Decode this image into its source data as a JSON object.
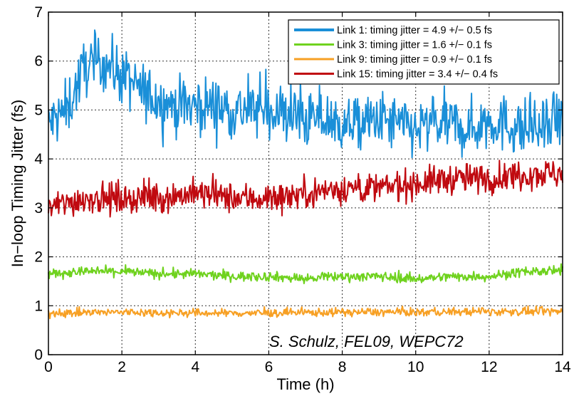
{
  "chart_data": {
    "type": "line",
    "title": "",
    "xlabel": "Time (h)",
    "ylabel": "In−loop Timing Jitter (fs)",
    "xlim": [
      0,
      14
    ],
    "ylim": [
      0,
      7
    ],
    "xticks": [
      0,
      2,
      4,
      6,
      8,
      10,
      12,
      14
    ],
    "yticks": [
      0,
      1,
      2,
      3,
      4,
      5,
      6,
      7
    ],
    "grid": true,
    "legend_position": "top-right",
    "annotation": "S. Schulz, FEL09, WEPC72",
    "series": [
      {
        "name": "Link 1: timing jitter = 4.9 +/− 0.5 fs",
        "color": "#1a8fd8",
        "noise": 0.42,
        "x": [
          0,
          0.5,
          1.0,
          1.5,
          2.0,
          2.5,
          3.0,
          3.5,
          4.0,
          4.5,
          5.0,
          5.5,
          6.0,
          6.5,
          7.0,
          7.5,
          8.0,
          8.5,
          9.0,
          9.5,
          10.0,
          10.5,
          11.0,
          11.5,
          12.0,
          12.5,
          13.0,
          13.5,
          14.0
        ],
        "y": [
          4.7,
          5.0,
          5.9,
          6.0,
          5.7,
          5.4,
          5.2,
          5.1,
          5.1,
          5.1,
          5.0,
          5.0,
          5.0,
          4.9,
          4.8,
          4.8,
          4.7,
          4.7,
          4.8,
          4.7,
          4.6,
          4.7,
          4.7,
          4.6,
          4.8,
          4.7,
          4.6,
          4.6,
          4.8
        ]
      },
      {
        "name": "Link 3: timing jitter = 1.6 +/− 0.1 fs",
        "color": "#6fd21e",
        "noise": 0.07,
        "x": [
          0,
          1,
          2,
          3,
          4,
          5,
          6,
          7,
          8,
          9,
          10,
          11,
          12,
          13,
          14
        ],
        "y": [
          1.65,
          1.7,
          1.7,
          1.65,
          1.65,
          1.6,
          1.6,
          1.55,
          1.6,
          1.6,
          1.55,
          1.6,
          1.6,
          1.7,
          1.7
        ]
      },
      {
        "name": "Link 9: timing jitter = 0.9 +/− 0.1 fs",
        "color": "#f7a024",
        "noise": 0.06,
        "x": [
          0,
          2,
          4,
          6,
          8,
          10,
          12,
          14
        ],
        "y": [
          0.85,
          0.87,
          0.85,
          0.85,
          0.87,
          0.87,
          0.88,
          0.88
        ]
      },
      {
        "name": "Link 15: timing jitter = 3.4 +/− 0.4 fs",
        "color": "#c00a10",
        "noise": 0.22,
        "x": [
          0,
          1,
          2,
          3,
          4,
          5,
          6,
          7,
          8,
          9,
          10,
          11,
          12,
          13,
          14
        ],
        "y": [
          3.0,
          3.2,
          3.2,
          3.2,
          3.3,
          3.2,
          3.2,
          3.3,
          3.4,
          3.4,
          3.5,
          3.6,
          3.6,
          3.7,
          3.7
        ]
      }
    ]
  }
}
